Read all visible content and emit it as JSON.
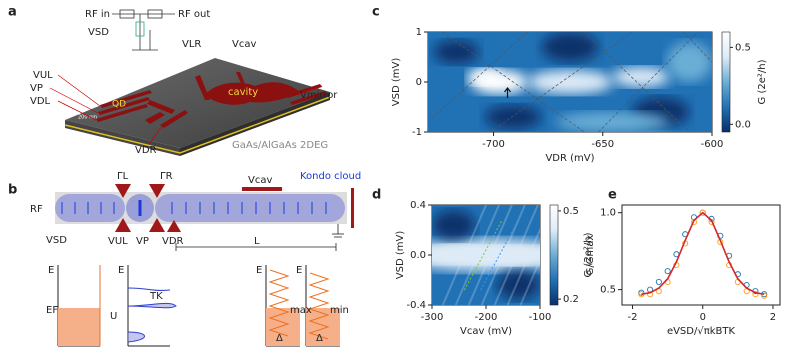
{
  "panel_a": {
    "label": "a",
    "rf_in": "RF in",
    "rf_out": "RF out",
    "v_sd": "VSD",
    "v_lr": "VLR",
    "v_cav": "Vcav",
    "v_ul": "VUL",
    "v_p": "VP",
    "v_dl": "VDL",
    "qd": "QD",
    "cavity": "cavity",
    "v_mirror": "Vmirror",
    "v_dr": "VDR",
    "scale": "200 nm",
    "material": "GaAs/AlGaAs 2DEG"
  },
  "panel_b": {
    "label": "b",
    "gamma_l": "ΓL",
    "gamma_r": "ΓR",
    "v_cav": "Vcav",
    "kondo": "Kondo cloud",
    "rf": "RF",
    "v_sd": "VSD",
    "v_ul": "VUL",
    "v_p": "VP",
    "v_dr": "VDR",
    "length": "L",
    "diagram_1": {
      "energy": "E",
      "fermi": "EF"
    },
    "diagram_2": {
      "energy": "E",
      "kondo_t": "TK",
      "charging": "U"
    },
    "diagram_3": {
      "energy": "E",
      "level": "max",
      "spacing": "Δ"
    },
    "diagram_4": {
      "energy": "E",
      "level": "min",
      "spacing": "Δ"
    }
  },
  "chart_data": [
    {
      "type": "heatmap",
      "panel": "c",
      "x_label": "VDR (mV)",
      "y_label": "VSD (mV)",
      "colorbar_label": "G (2e²/h)",
      "xlim": [
        -730,
        -600
      ],
      "xticks": [
        -700,
        -650,
        -600
      ],
      "ylim": [
        -1,
        1
      ],
      "yticks": [
        -1,
        0,
        1
      ],
      "clim": [
        -0.05,
        0.6
      ],
      "cticks": [
        {
          "value": 0,
          "label": "0.0"
        },
        0.5
      ],
      "colormap": [
        "#08306b",
        "#2171b5",
        "#6baed6",
        "#deebf7",
        "#ffffff"
      ]
    },
    {
      "type": "heatmap",
      "panel": "d",
      "x_label": "Vcav (mV)",
      "y_label": "VSD (mV)",
      "colorbar_label": "G (2e²/h)",
      "xlim": [
        -300,
        -100
      ],
      "xticks": [
        -300,
        -200,
        -100
      ],
      "ylim": [
        -0.4,
        0.4
      ],
      "yticks": [
        -0.4,
        {
          "value": 0,
          "label": "0.0"
        },
        0.4
      ],
      "clim": [
        0.18,
        0.52
      ],
      "cticks": [
        0.2,
        0.5
      ],
      "colormap": [
        "#08306b",
        "#2171b5",
        "#6baed6",
        "#deebf7",
        "#ffffff"
      ]
    },
    {
      "type": "line",
      "panel": "e",
      "x_label": "eVSD/√πkBTK",
      "y_label": "G/Gmax",
      "xlim": [
        -2.3,
        2.2
      ],
      "xticks": [
        -2,
        0,
        2
      ],
      "ylim": [
        0.4,
        1.05
      ],
      "yticks": [
        0.5,
        {
          "value": 1,
          "label": "1.0"
        }
      ],
      "x": [
        -1.75,
        -1.5,
        -1.25,
        -1,
        -0.75,
        -0.5,
        -0.25,
        0,
        0.25,
        0.5,
        0.75,
        1,
        1.25,
        1.5,
        1.75
      ],
      "series": [
        {
          "color": "#1f77b4",
          "style": "markers",
          "values": [
            0.48,
            0.5,
            0.55,
            0.62,
            0.73,
            0.86,
            0.97,
            1.0,
            0.96,
            0.85,
            0.72,
            0.6,
            0.53,
            0.49,
            0.47
          ]
        },
        {
          "color": "#ff9f1c",
          "style": "markers",
          "values": [
            0.47,
            0.47,
            0.49,
            0.55,
            0.66,
            0.8,
            0.94,
            1.0,
            0.94,
            0.81,
            0.66,
            0.55,
            0.49,
            0.47,
            0.46
          ]
        },
        {
          "color": "#d62728",
          "style": "line",
          "values": [
            0.47,
            0.48,
            0.51,
            0.57,
            0.68,
            0.82,
            0.95,
            1.0,
            0.95,
            0.82,
            0.68,
            0.57,
            0.51,
            0.48,
            0.47
          ]
        }
      ]
    }
  ]
}
